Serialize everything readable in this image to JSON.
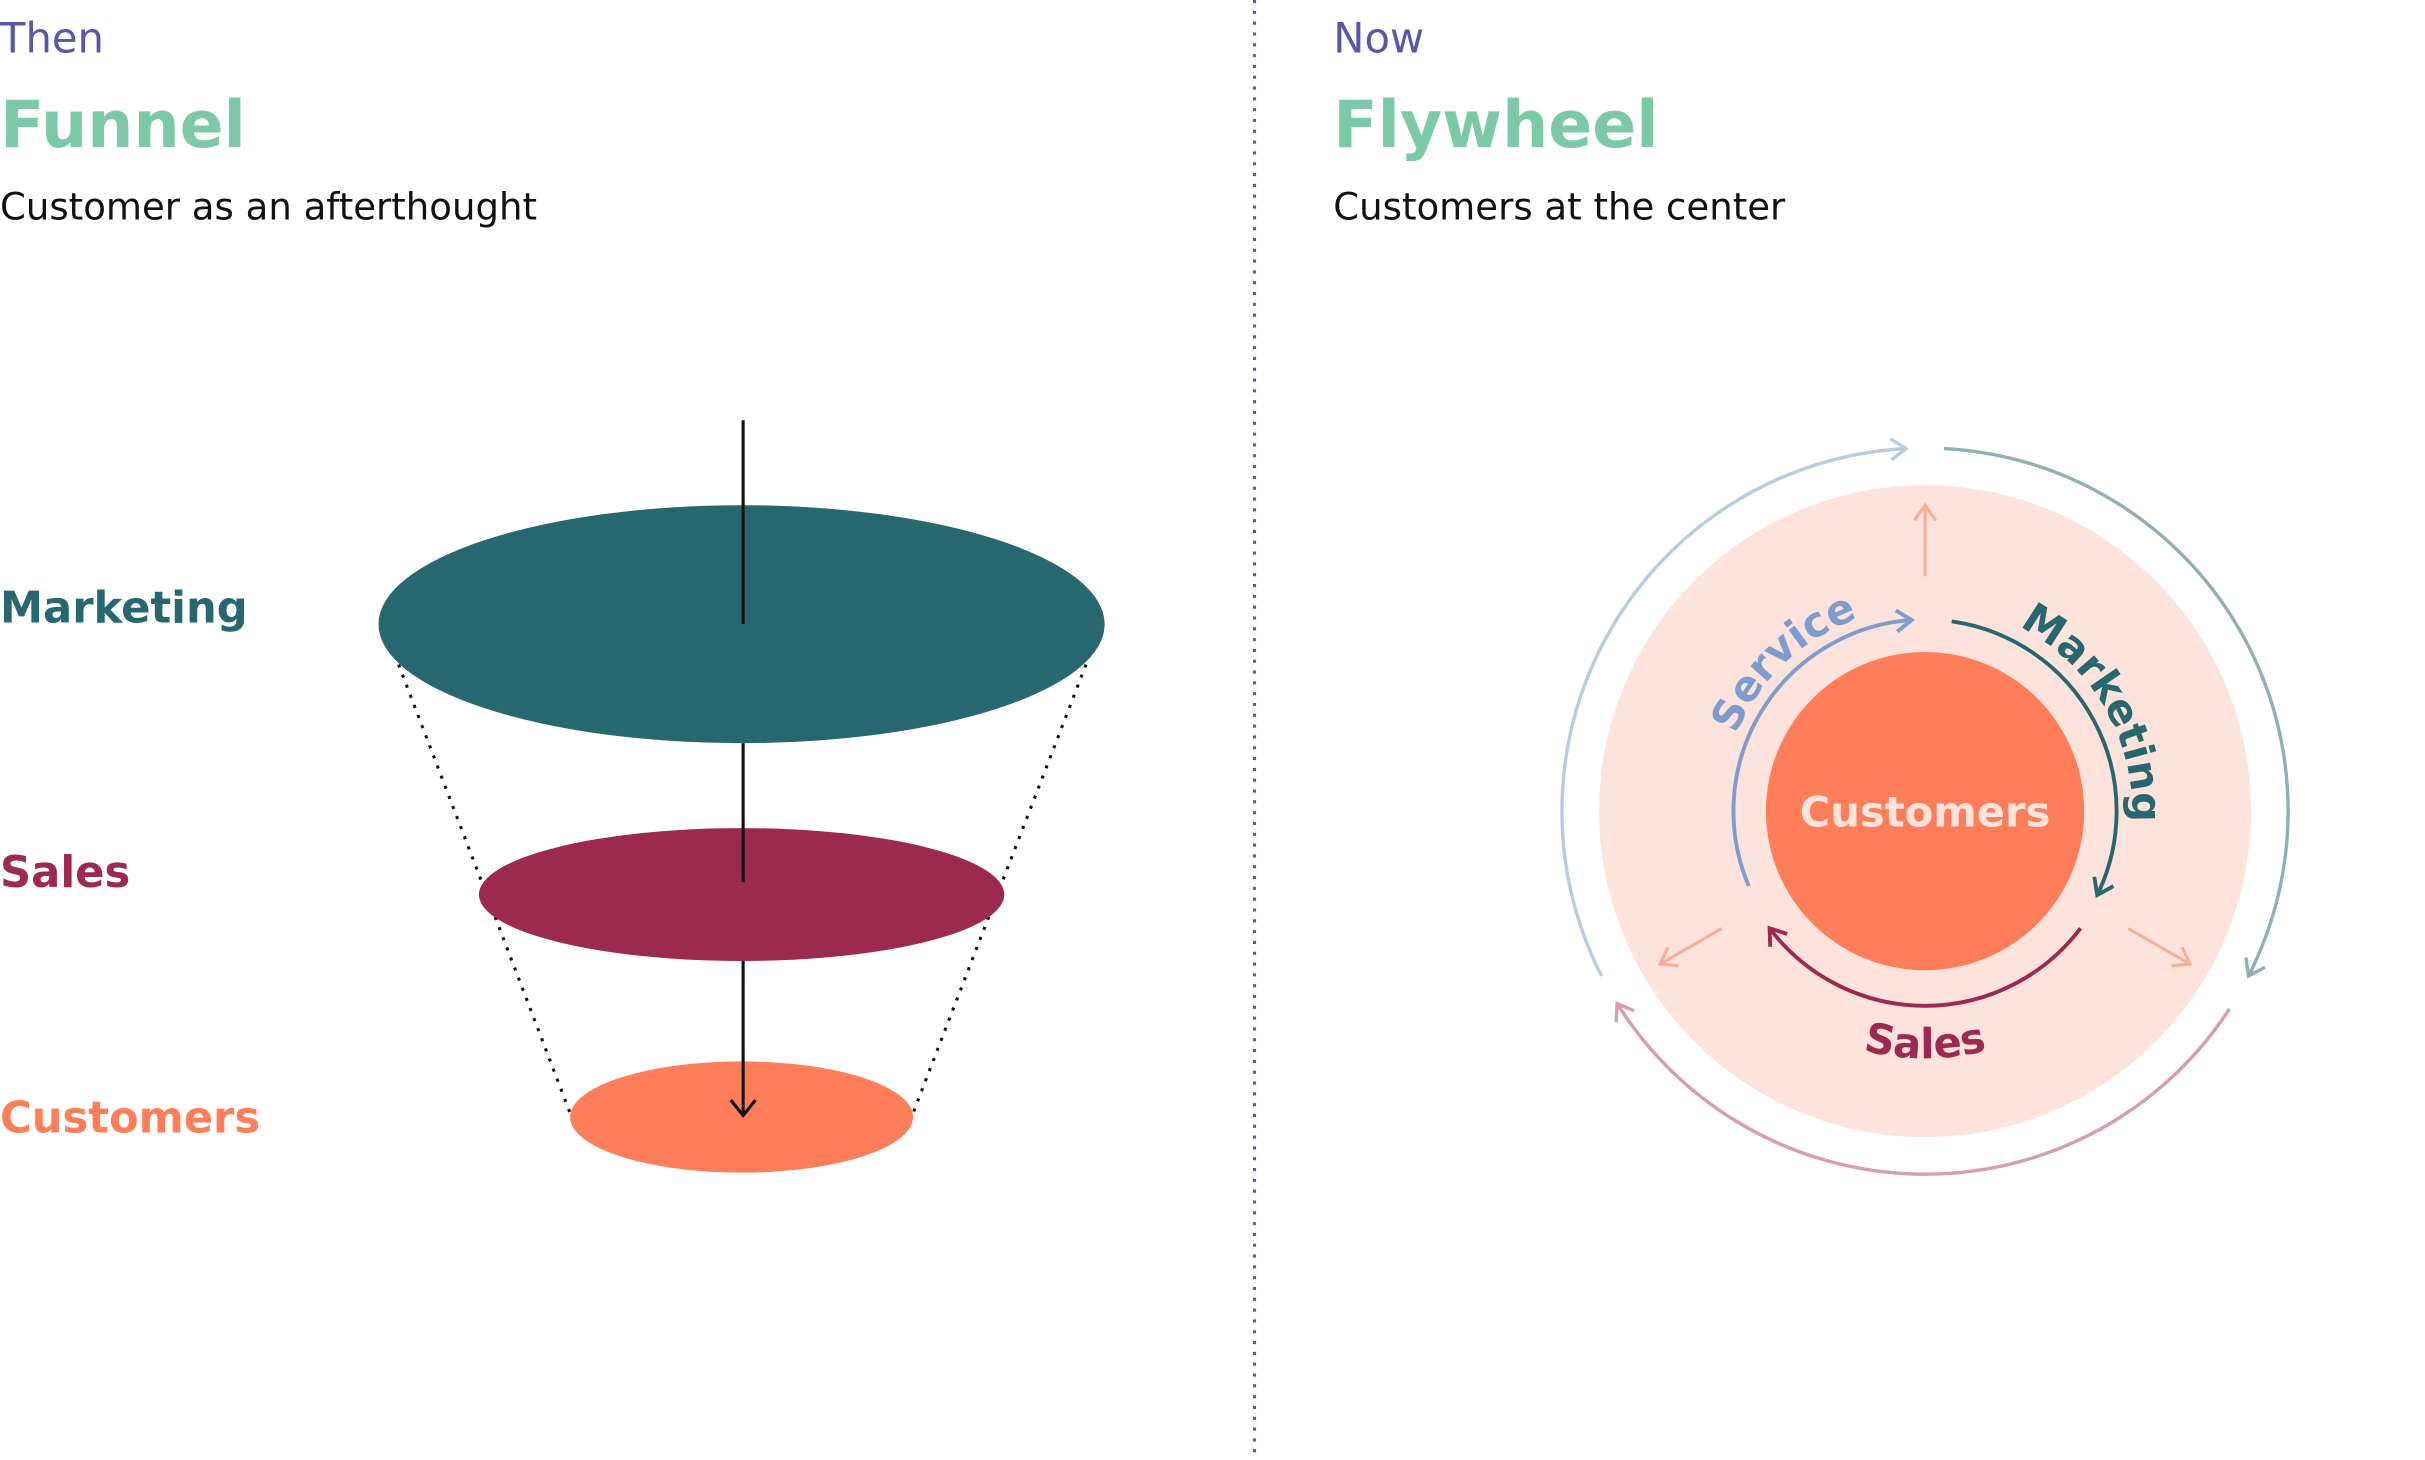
{
  "left": {
    "eyebrow": "Then",
    "title": "Funnel",
    "subtitle": "Customer as an afterthought",
    "stages": [
      "Marketing",
      "Sales",
      "Customers"
    ]
  },
  "right": {
    "eyebrow": "Now",
    "title": "Flywheel",
    "subtitle": "Customers at the center",
    "center": "Customers",
    "ring": [
      "Service",
      "Marketing",
      "Sales"
    ]
  }
}
